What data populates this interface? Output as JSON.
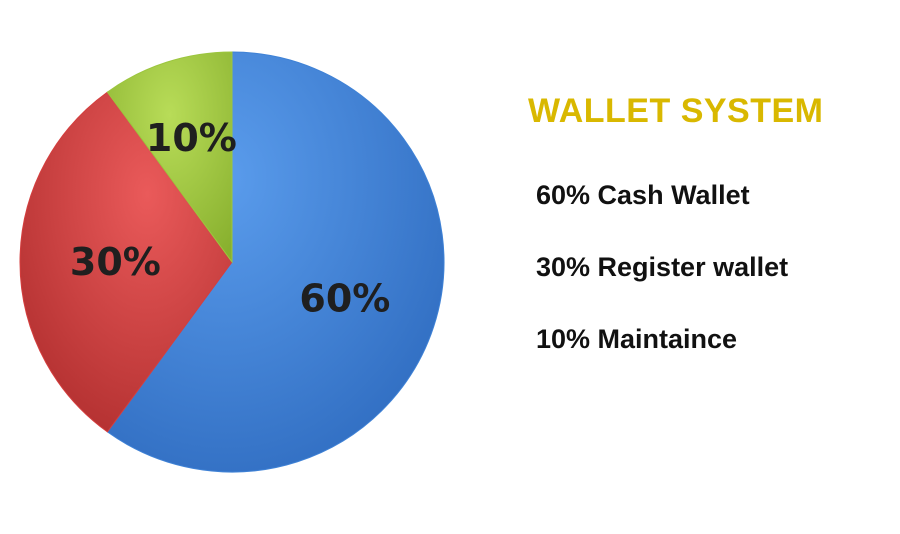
{
  "chart_data": {
    "type": "pie",
    "title": "WALLET SYSTEM",
    "slices": [
      {
        "label": "60%",
        "value": 60,
        "color": "#3f82d6"
      },
      {
        "label": "30%",
        "value": 30,
        "color": "#d43e3e"
      },
      {
        "label": "10%",
        "value": 10,
        "color": "#9cc63e"
      }
    ],
    "legend": [
      "60% Cash Wallet",
      "30% Register wallet",
      "10% Maintaince"
    ],
    "legend_position": "right"
  }
}
